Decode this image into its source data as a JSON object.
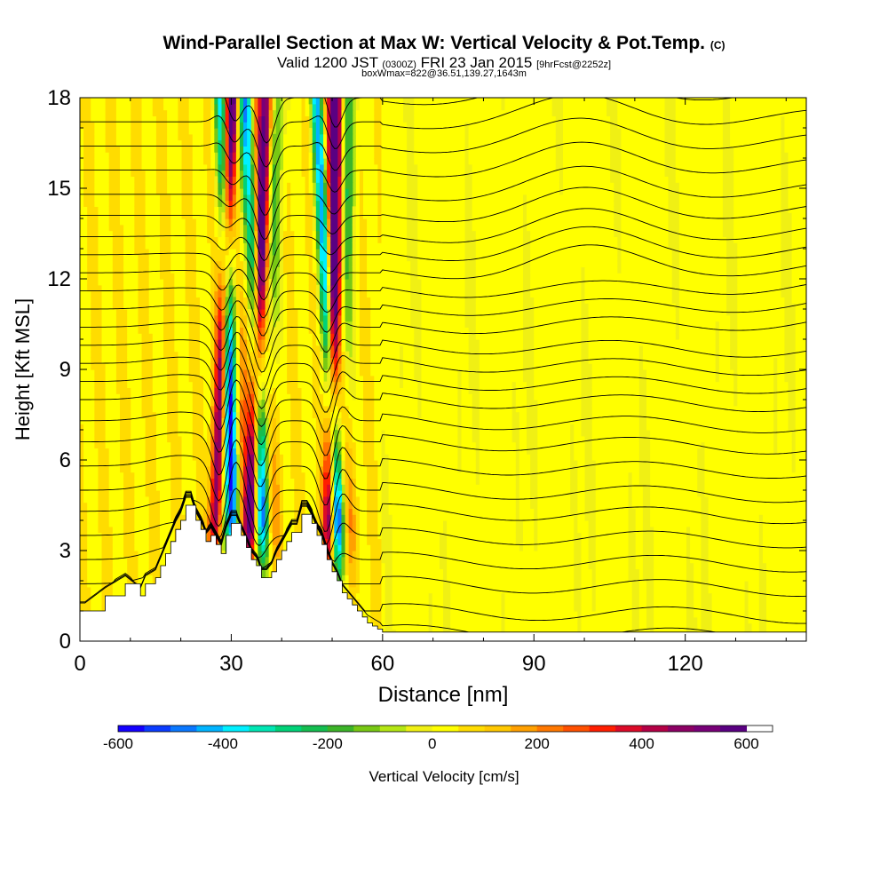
{
  "chart_data": {
    "type": "heatmap",
    "title": "Wind-Parallel Section at Max W: Vertical Velocity & Pot.Temp.",
    "title_mark": "(C)",
    "subtitle_main_1": "Valid 1200 JST",
    "subtitle_small_1": "(0300Z)",
    "subtitle_main_2": "FRI 23 Jan 2015",
    "subtitle_small_2": "[9hrFcst@2252z]",
    "subtitle_2": "boxWmax=822@36.51,139.27,1643m",
    "xlabel": "Distance [nm]",
    "ylabel": "Height [Kft MSL]",
    "xlim": [
      0,
      144
    ],
    "ylim": [
      0,
      18
    ],
    "x_ticks": [
      0,
      30,
      60,
      90,
      120
    ],
    "y_ticks": [
      0,
      3,
      6,
      9,
      12,
      15,
      18
    ],
    "colorbar": {
      "label": "Vertical Velocity [cm/s]",
      "range": [
        -600,
        650
      ],
      "step": 50,
      "tick_values": [
        -600,
        -400,
        -200,
        0,
        200,
        400,
        600
      ],
      "colors": [
        "#1400ff",
        "#0a3cff",
        "#0a78ff",
        "#00b4ff",
        "#00f0ff",
        "#00e6b4",
        "#00d278",
        "#14be50",
        "#3cb428",
        "#78c814",
        "#b4e614",
        "#f0f014",
        "#ffff00",
        "#ffdc00",
        "#ffc800",
        "#ffa000",
        "#ff7800",
        "#ff5000",
        "#ff1e00",
        "#dc0a28",
        "#b40046",
        "#8c0064",
        "#780078",
        "#5a0082"
      ]
    },
    "terrain_profile": {
      "x": [
        0,
        1,
        5,
        9,
        12,
        13,
        15,
        16,
        17,
        18,
        19,
        20,
        21,
        22,
        23,
        24,
        25,
        26,
        27,
        28,
        29,
        30,
        31,
        32,
        33,
        34,
        35,
        36,
        37,
        38,
        39,
        40,
        41,
        42,
        43,
        44,
        45,
        46,
        47,
        48,
        49,
        50,
        51,
        52,
        53,
        54,
        55,
        56,
        57,
        58,
        59,
        60
      ],
      "height": [
        1.0,
        1.0,
        1.5,
        1.9,
        1.5,
        1.9,
        2.1,
        2.5,
        2.9,
        3.3,
        3.7,
        4.0,
        4.5,
        4.5,
        4.0,
        3.7,
        3.3,
        3.5,
        3.2,
        2.9,
        3.5,
        3.9,
        3.9,
        3.5,
        3.1,
        2.7,
        2.5,
        2.1,
        2.1,
        2.3,
        2.7,
        3.0,
        3.3,
        3.6,
        3.6,
        4.2,
        4.2,
        3.9,
        3.5,
        3.2,
        2.7,
        2.3,
        2.0,
        1.6,
        1.4,
        1.2,
        1.0,
        0.8,
        0.6,
        0.5,
        0.4,
        0.3
      ]
    },
    "updraft_bands": [
      {
        "name": "red band 1",
        "x_bottom": 26,
        "x_top": 30,
        "w": 500
      },
      {
        "name": "red band 2",
        "x_bottom": 33,
        "x_top": 37,
        "w": 480
      },
      {
        "name": "red band 3",
        "x_bottom": 49,
        "x_top": 51,
        "w": 550
      }
    ],
    "downdraft_bands": [
      {
        "name": "blue band 1",
        "x_bottom": 31,
        "x_top": 28,
        "w": -450
      },
      {
        "name": "blue band 2",
        "x_bottom": 37,
        "x_top": 33,
        "w": -350
      },
      {
        "name": "blue band 3",
        "x_bottom": 52,
        "x_top": 47,
        "w": -500
      }
    ],
    "isentrope_heights": [
      0.3,
      1.0,
      1.9,
      2.7,
      3.5,
      4.3,
      5.0,
      5.8,
      6.6,
      7.3,
      8.0,
      8.6,
      9.2,
      9.8,
      10.4,
      11.0,
      11.6,
      12.2,
      12.8,
      13.4,
      14.1,
      14.8,
      15.6,
      16.4,
      17.2,
      18.0
    ]
  }
}
